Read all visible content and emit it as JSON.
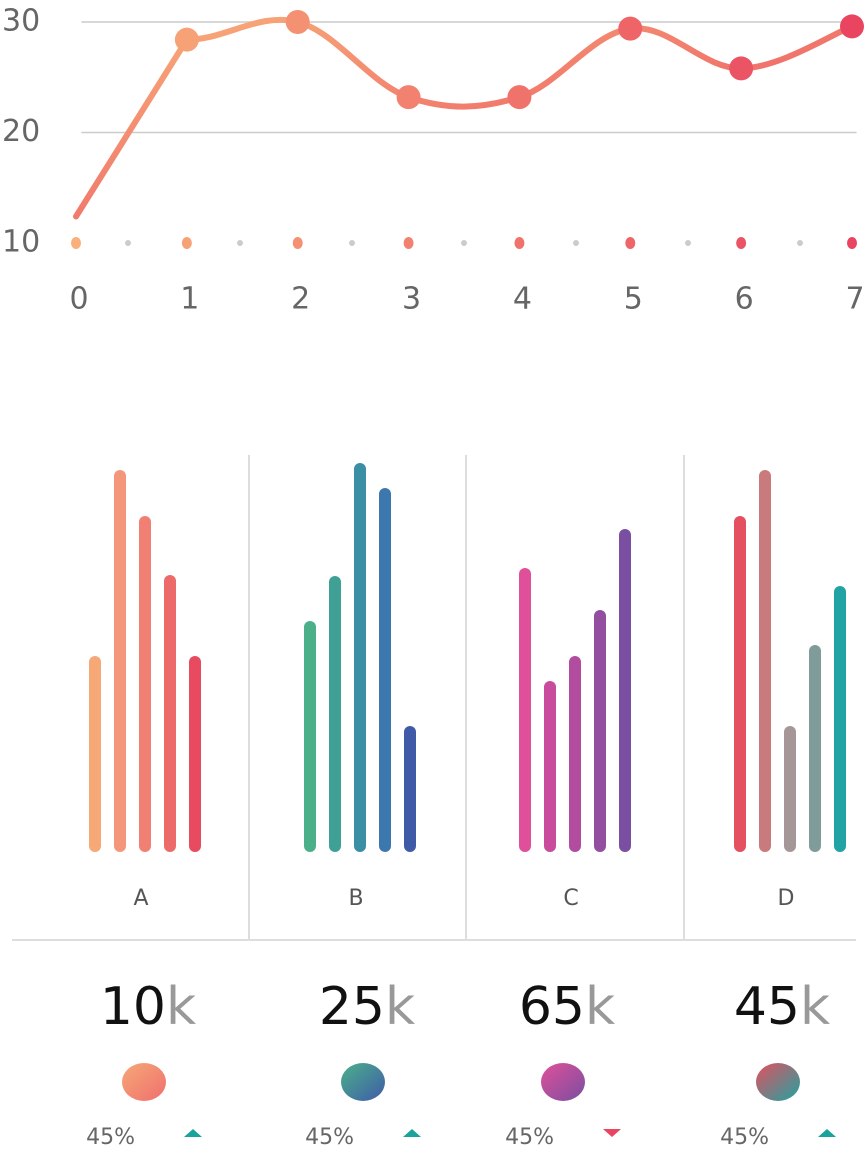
{
  "chart_data": [
    {
      "type": "line",
      "x": [
        0,
        1,
        2,
        3,
        4,
        5,
        6,
        7
      ],
      "values": [
        12.4,
        28.4,
        30,
        23.2,
        23.2,
        29.4,
        25.8,
        29.6
      ],
      "xlim": [
        0,
        7
      ],
      "xticks": [
        0,
        1,
        2,
        3,
        4,
        5,
        6,
        7
      ],
      "ylim": [
        10,
        30
      ],
      "yticks": [
        10,
        20,
        30
      ],
      "colors": [
        "#f9b07a",
        "#e94560"
      ],
      "grid": true
    },
    {
      "type": "bar",
      "categories": [
        "A",
        "B",
        "C",
        "D"
      ],
      "values": [
        [
          196,
          382,
          336,
          277,
          196
        ],
        [
          231,
          276,
          389,
          364,
          126
        ],
        [
          284,
          171,
          196,
          242,
          323
        ],
        [
          336,
          382,
          126,
          207,
          266
        ]
      ],
      "colors": [
        [
          "#f6a877",
          "#f4967a",
          "#f17f73",
          "#ec6a6a",
          "#e84a5f"
        ],
        [
          "#4bb08a",
          "#3fa196",
          "#3a8fa5",
          "#3c78ad",
          "#3f5ba8"
        ],
        [
          "#e0509a",
          "#c84b9c",
          "#b14c9f",
          "#934ea0",
          "#7a4ea0"
        ],
        [
          "#e4505f",
          "#c97a7c",
          "#a59697",
          "#7f9b9a",
          "#20a3a2"
        ]
      ],
      "ylim": [
        0,
        400
      ]
    }
  ],
  "stats": [
    {
      "value": "10",
      "unit": "k",
      "change": "45%",
      "trend": "up",
      "colors": [
        "#f6a877",
        "#ef6f6e"
      ]
    },
    {
      "value": "25",
      "unit": "k",
      "change": "45%",
      "trend": "up",
      "colors": [
        "#4bb08a",
        "#3f5ba8"
      ]
    },
    {
      "value": "65",
      "unit": "k",
      "change": "45%",
      "trend": "down",
      "colors": [
        "#e0509a",
        "#7a4ea0"
      ]
    },
    {
      "value": "45",
      "unit": "k",
      "change": "45%",
      "trend": "up",
      "colors": [
        "#e4505f",
        "#20a3a2"
      ]
    }
  ]
}
